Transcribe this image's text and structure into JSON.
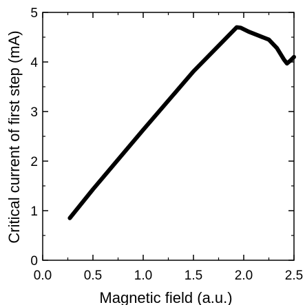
{
  "chart_data": {
    "type": "line",
    "title": "",
    "xlabel": "Magnetic field (a.u.)",
    "ylabel": "Critical current of first step (mA)",
    "xlim": [
      0.0,
      2.5
    ],
    "ylim": [
      0,
      5
    ],
    "x_ticks": [
      "0.0",
      "0.5",
      "1.0",
      "1.5",
      "2.0",
      "2.5"
    ],
    "y_ticks": [
      "0",
      "1",
      "2",
      "3",
      "4",
      "5"
    ],
    "grid": false,
    "legend": "none",
    "line_color": "#000000",
    "series": [
      {
        "x": [
          0.27,
          0.5,
          1.0,
          1.5,
          1.93,
          1.97,
          2.05,
          2.15,
          2.25,
          2.33,
          2.4,
          2.43,
          2.46,
          2.5
        ],
        "y": [
          0.85,
          1.43,
          2.63,
          3.81,
          4.7,
          4.69,
          4.61,
          4.53,
          4.45,
          4.28,
          4.05,
          3.97,
          4.02,
          4.1
        ]
      }
    ]
  }
}
